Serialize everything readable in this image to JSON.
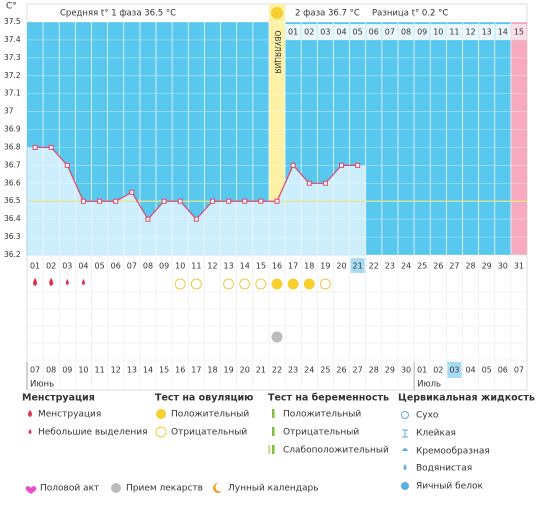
{
  "y_axis_unit": "C°",
  "header": {
    "phase1": "Средняя t° 1 фаза 36.5 °C",
    "phase2": "2 фаза 36.7 °C",
    "difference": "Разница t° 0.2 °C"
  },
  "chart_data": {
    "type": "line",
    "categories": [
      "01",
      "02",
      "03",
      "04",
      "05",
      "06",
      "07",
      "08",
      "09",
      "10",
      "11",
      "12",
      "13",
      "14",
      "15",
      "16",
      "17",
      "18",
      "19",
      "20",
      "21",
      "22",
      "23",
      "24",
      "25",
      "26",
      "27",
      "28",
      "29",
      "30",
      "31"
    ],
    "series": [
      {
        "values": [
          36.8,
          36.8,
          36.7,
          36.5,
          36.5,
          36.5,
          36.55,
          36.4,
          36.5,
          36.5,
          36.4,
          36.5,
          36.5,
          36.5,
          36.5,
          36.5,
          36.7,
          36.6,
          36.6,
          36.7,
          36.7,
          null,
          null,
          null,
          null,
          null,
          null,
          null,
          null,
          null,
          null
        ],
        "color": "#e0476a"
      }
    ],
    "ylim": [
      36.2,
      37.5
    ],
    "yticks": [
      37.5,
      37.4,
      37.3,
      37.2,
      37.1,
      37,
      36.9,
      36.8,
      36.7,
      36.6,
      36.5,
      36.4,
      36.3,
      36.2
    ],
    "coverline": 36.5,
    "coverline_color": "#e6e68c",
    "background_color": "#58c8ef",
    "fill_color": "#cdeefc",
    "grid": true,
    "ovulation_day": 15,
    "ovulation_label": "ОВУЛЯЦИЯ",
    "current_day": 20,
    "pink_day": 30,
    "phase2_days": [
      "01",
      "02",
      "03",
      "04",
      "05",
      "06",
      "07",
      "08",
      "09",
      "10",
      "11",
      "12",
      "13",
      "14",
      "15"
    ]
  },
  "markers": {
    "menstruation_heavy": [
      0,
      1
    ],
    "menstruation_light": [
      2,
      3
    ],
    "ovulation_positive": [
      15,
      16,
      17
    ],
    "ovulation_negative": [
      9,
      10,
      12,
      13,
      14,
      18
    ],
    "medication": [
      15
    ]
  },
  "calendar": {
    "dates": [
      "07",
      "08",
      "09",
      "10",
      "11",
      "12",
      "13",
      "14",
      "15",
      "16",
      "17",
      "18",
      "19",
      "20",
      "21",
      "22",
      "23",
      "24",
      "25",
      "26",
      "27",
      "28",
      "29",
      "30",
      "01",
      "02",
      "03",
      "04",
      "05",
      "06",
      "07"
    ],
    "weekends": [
      0,
      1,
      7,
      8,
      14,
      15,
      21,
      22,
      28,
      29
    ],
    "weekend_color": "#e0334f",
    "months": [
      {
        "label": "Июнь",
        "index": 0
      },
      {
        "label": "Июль",
        "index": 24
      }
    ]
  },
  "legend": {
    "menstruation": {
      "title": "Менструация",
      "items": [
        "Менструация",
        "Небольшие выделения"
      ]
    },
    "ovulation_test": {
      "title": "Тест на овуляцию",
      "items": [
        "Положительный",
        "Отрицательный"
      ]
    },
    "pregnancy_test": {
      "title": "Тест на беременность",
      "items": [
        "Положительный",
        "Отрицательный",
        "Слабоположительный"
      ]
    },
    "cervical": {
      "title": "Цервикальная жидкость",
      "items": [
        "Сухо",
        "Клейкая",
        "Кремообразная",
        "Водянистая",
        "Яичный белок"
      ]
    },
    "other": [
      "Половой акт",
      "Прием лекарств",
      "Лунный календарь"
    ]
  }
}
